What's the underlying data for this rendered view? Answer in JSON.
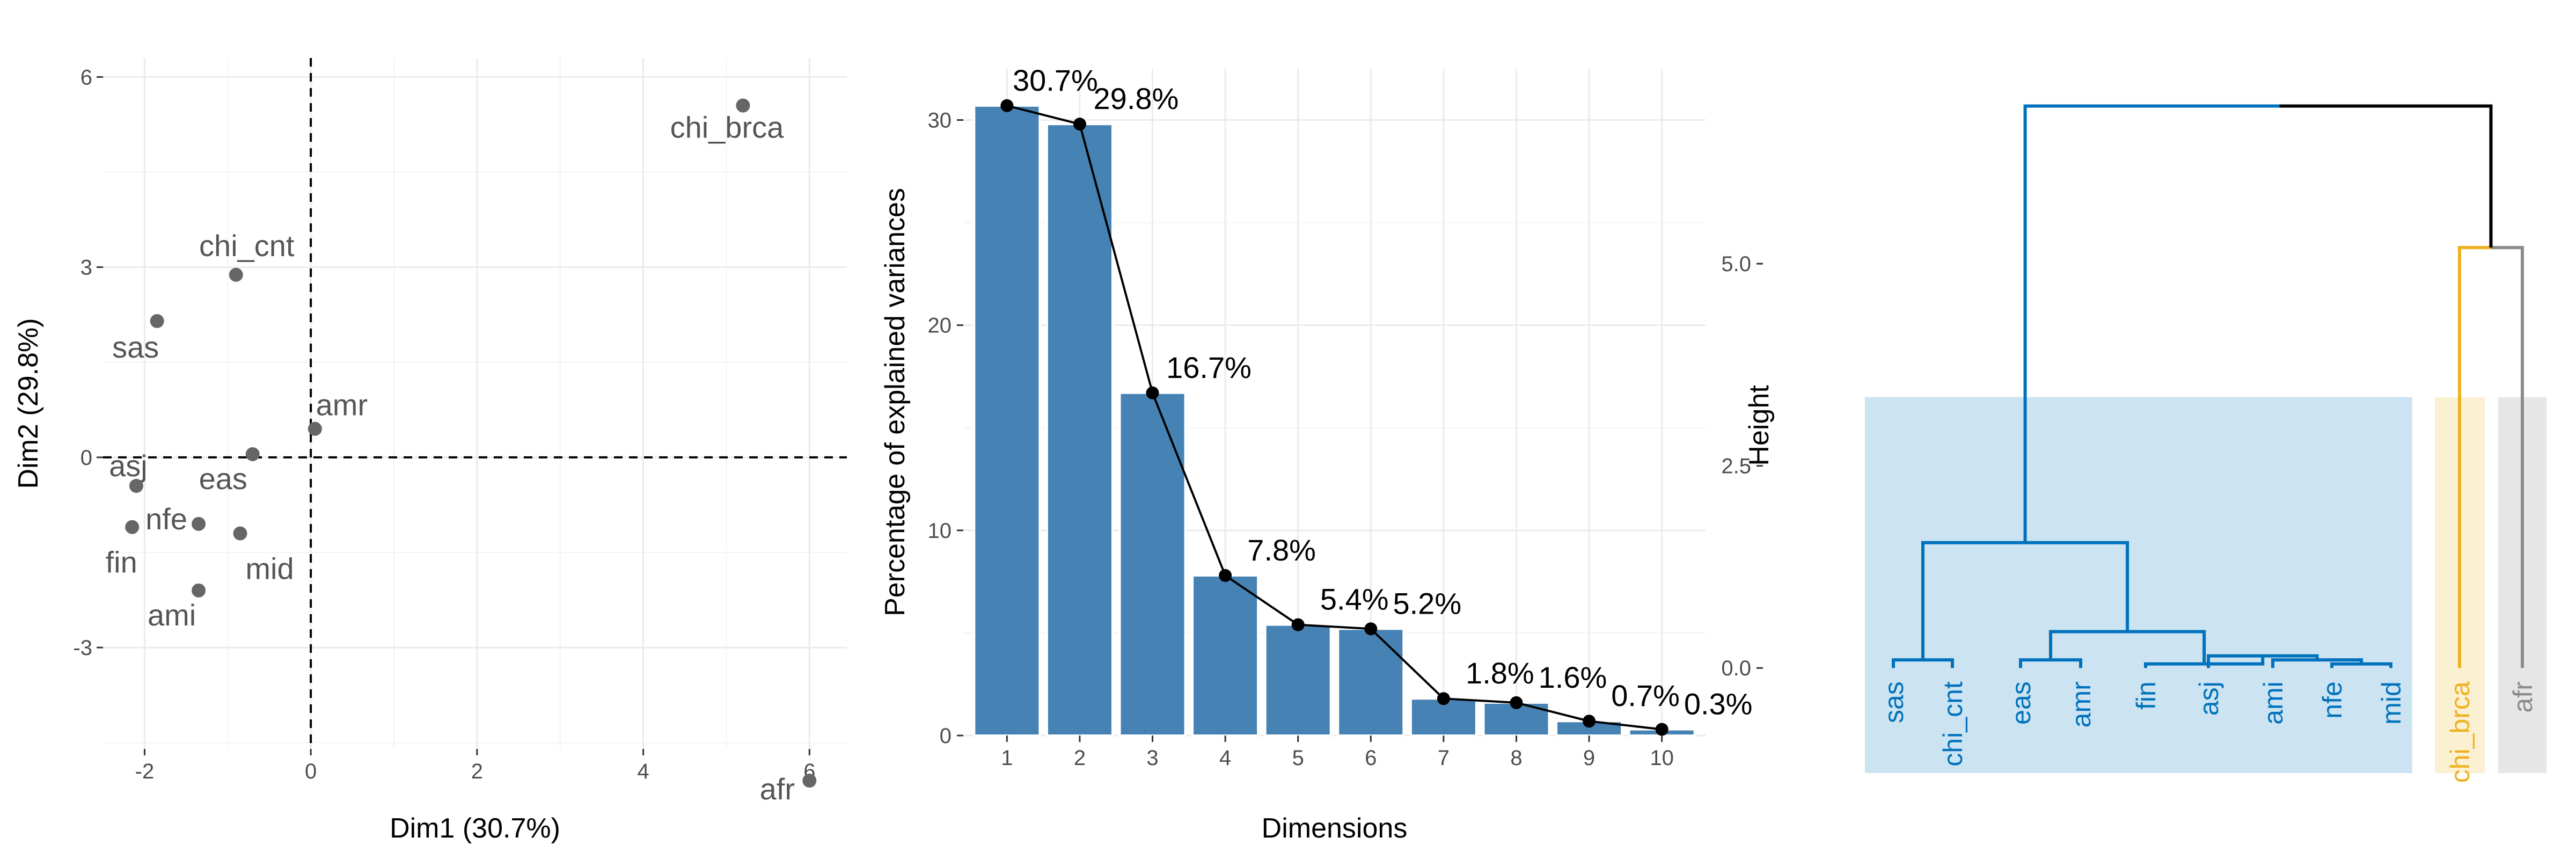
{
  "chart_data": [
    {
      "type": "scatter",
      "xlabel": "Dim1 (30.7%)",
      "ylabel": "Dim2 (29.8%)",
      "xlim": [
        -2.5,
        6.45
      ],
      "ylim": [
        -4.6,
        6.3
      ],
      "xticks": [
        -2,
        0,
        2,
        4,
        6
      ],
      "xtick_labels": [
        "-2",
        "0",
        "2",
        "4",
        "6"
      ],
      "yticks": [
        -3,
        0,
        3,
        6
      ],
      "ytick_labels": [
        "-3",
        "0",
        "3",
        "6"
      ],
      "grid": true,
      "reference_lines": {
        "x": 0,
        "y": 0,
        "style": "dashed"
      },
      "point_color": "#666666",
      "points": [
        {
          "label": "chi_brca",
          "x": 5.2,
          "y": 5.55
        },
        {
          "label": "chi_cnt",
          "x": -0.9,
          "y": 2.88
        },
        {
          "label": "sas",
          "x": -1.85,
          "y": 2.15
        },
        {
          "label": "amr",
          "x": 0.05,
          "y": 0.45
        },
        {
          "label": "asj",
          "x": -2.1,
          "y": -0.45
        },
        {
          "label": "eas",
          "x": -0.7,
          "y": 0.05
        },
        {
          "label": "nfe",
          "x": -1.35,
          "y": -1.05
        },
        {
          "label": "fin",
          "x": -2.15,
          "y": -1.1
        },
        {
          "label": "mid",
          "x": -0.85,
          "y": -1.2
        },
        {
          "label": "ami",
          "x": -1.35,
          "y": -2.1
        },
        {
          "label": "afr",
          "x": 6.0,
          "y": -5.1
        }
      ]
    },
    {
      "type": "bar",
      "xlabel": "Dimensions",
      "ylabel": "Percentage of explained variances",
      "categories": [
        "1",
        "2",
        "3",
        "4",
        "5",
        "6",
        "7",
        "8",
        "9",
        "10"
      ],
      "values": [
        30.7,
        29.8,
        16.7,
        7.8,
        5.4,
        5.2,
        1.8,
        1.6,
        0.7,
        0.3
      ],
      "value_labels": [
        "30.7%",
        "29.8%",
        "16.7%",
        "7.8%",
        "5.4%",
        "5.2%",
        "1.8%",
        "1.6%",
        "0.7%",
        "0.3%"
      ],
      "ylim": [
        0,
        32.5
      ],
      "yticks": [
        0,
        10,
        20,
        30
      ],
      "ytick_labels": [
        "0",
        "10",
        "20",
        "30"
      ],
      "bar_color": "#4682b4",
      "line_color": "#000000",
      "grid": true
    },
    {
      "type": "dendrogram",
      "ylabel": "Height",
      "ylim": [
        -1.3,
        7.0
      ],
      "yticks": [
        0,
        2.5,
        5.0
      ],
      "ytick_labels": [
        "0.0",
        "2.5",
        "5.0"
      ],
      "leaves": [
        "sas",
        "chi_cnt",
        "eas",
        "amr",
        "fin",
        "asj",
        "ami",
        "nfe",
        "mid",
        "chi_brca",
        "afr"
      ],
      "clusters": [
        {
          "leaves": [
            "sas",
            "chi_cnt",
            "eas",
            "amr",
            "fin",
            "asj",
            "ami",
            "nfe",
            "mid"
          ],
          "color": "#0072BD",
          "fill": "#CCE3F1"
        },
        {
          "leaves": [
            "chi_brca"
          ],
          "color": "#EDB120",
          "fill": "#FBF0D1"
        },
        {
          "leaves": [
            "afr"
          ],
          "color": "#8C8C8C",
          "fill": "#E6E6E6"
        }
      ],
      "merges": [
        {
          "left": "sas",
          "right": "chi_cnt",
          "height": 0.1
        },
        {
          "left": "eas",
          "right": "amr",
          "height": 0.1
        },
        {
          "left": "nfe",
          "right": "mid",
          "height": 0.05
        },
        {
          "left": "ami",
          "right": "nfe+mid",
          "height": 0.1
        },
        {
          "left": "asj",
          "right": "ami+nfe+mid",
          "height": 0.15
        },
        {
          "left": "fin",
          "right": "asj+ami+nfe+mid",
          "height": 0.05
        },
        {
          "left": "eas+amr",
          "right": "fin..mid",
          "height": 0.45
        },
        {
          "left": "sas+chi_cnt",
          "right": "eas..mid",
          "height": 1.55
        },
        {
          "left": "chi_brca",
          "right": "afr",
          "height": 5.2
        },
        {
          "left": "cluster_1",
          "right": "chi_brca+afr",
          "height": 6.95
        }
      ],
      "root_color": "#000000"
    }
  ]
}
